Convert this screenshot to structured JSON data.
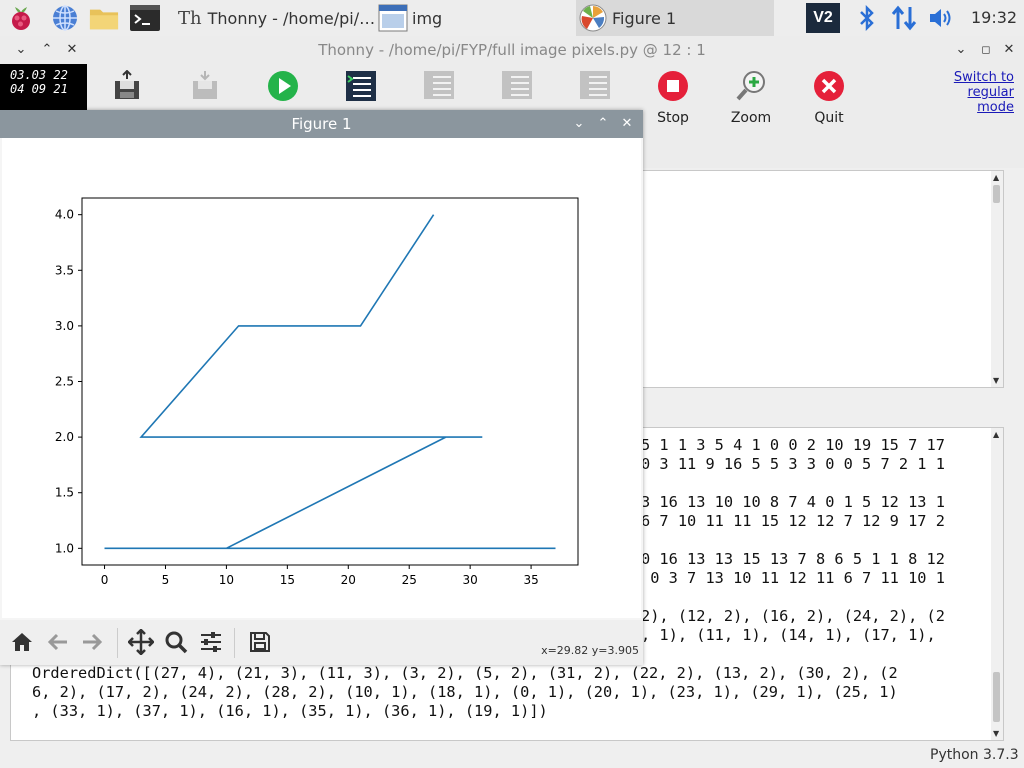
{
  "taskbar": {
    "icons": [
      "raspberry-menu-icon",
      "web-browser-icon",
      "file-manager-icon",
      "terminal-icon"
    ],
    "tasks": [
      {
        "label": "Thonny  -  /home/pi/…",
        "icon": "thonny-icon",
        "active": false
      },
      {
        "label": "img",
        "icon": "image-viewer-icon",
        "active": false
      },
      {
        "label": "Figure 1",
        "icon": "matplotlib-icon",
        "active": true
      }
    ],
    "tray": [
      "vnc-icon",
      "bluetooth-icon",
      "network-icon",
      "volume-icon"
    ],
    "clock": "19:32"
  },
  "thonny": {
    "title": "Thonny  -  /home/pi/FYP/full image  pixels.py  @  12 : 1",
    "controls": {
      "minimize": "⌄",
      "maximize": "⌃",
      "close": "✕"
    },
    "toolbar": [
      {
        "name": "new-button",
        "label": "",
        "icon": "save-icon",
        "disabled": false
      },
      {
        "name": "save-button",
        "label": "",
        "icon": "save-disabled-icon",
        "disabled": true
      },
      {
        "name": "run-button",
        "label": "",
        "icon": "run-icon",
        "disabled": false
      },
      {
        "name": "debug-button",
        "label": "",
        "icon": "debug-icon",
        "disabled": false
      },
      {
        "name": "step-over-button",
        "label": "",
        "icon": "step-over-icon",
        "disabled": true
      },
      {
        "name": "step-into-button",
        "label": "",
        "icon": "step-into-icon",
        "disabled": true
      },
      {
        "name": "step-out-button",
        "label": "",
        "icon": "step-out-icon",
        "disabled": true
      },
      {
        "name": "stop-button",
        "label": "Stop",
        "icon": "stop-icon",
        "disabled": false
      },
      {
        "name": "zoom-button",
        "label": "Zoom",
        "icon": "zoom-icon",
        "disabled": false
      },
      {
        "name": "quit-button",
        "label": "Quit",
        "icon": "quit-icon",
        "disabled": false
      }
    ],
    "switch_mode": "Switch to regular mode",
    "status_python": "Python 3.7.3"
  },
  "clock_widget": [
    "03.03 22",
    "04 09 21"
  ],
  "shell": {
    "partial_lines": [
      "5 1 1 3 5 4 1 0 0 2 10 19 15 7 17",
      "0 3 11 9 16 5 5 3 3 0 0 5 7 2 1 1",
      "",
      "3 16 13 10 10 8 7 4 0 1 5 12 13 1",
      "6 7 10 11 11 15 12 12 7 12 9 17 2",
      "",
      "0 16 13 13 15 13 7 8 6 5 1 1 8 12",
      " 0 3 7 13 10 11 12 11 6 7 11 10 1",
      "",
      "2), (12, 2), (16, 2), (24, 2), (2",
      ", 1), (11, 1), (14, 1), (17, 1),"
    ],
    "full_lines": [
      "OrderedDict([(27, 4), (21, 3), (11, 3), (3, 2), (5, 2), (31, 2), (22, 2), (13, 2), (30, 2), (2",
      "6, 2), (17, 2), (24, 2), (28, 2), (10, 1), (18, 1), (0, 1), (20, 1), (23, 1), (29, 1), (25, 1)",
      ", (33, 1), (37, 1), (16, 1), (35, 1), (36, 1), (19, 1)])"
    ]
  },
  "figure": {
    "title": "Figure 1",
    "controls": {
      "minimize": "⌄",
      "maximize": "⌃",
      "close": "✕"
    },
    "toolbar": [
      "home-icon",
      "back-icon",
      "forward-icon",
      "pan-icon",
      "zoom-rect-icon",
      "configure-subplots-icon",
      "save-figure-icon"
    ],
    "coords": "x=29.82 y=3.905"
  },
  "chart_data": {
    "type": "line",
    "title": "",
    "xlabel": "",
    "ylabel": "",
    "xlim": [
      -1.85,
      38.85
    ],
    "ylim": [
      0.85,
      4.15
    ],
    "xticks": [
      0,
      5,
      10,
      15,
      20,
      25,
      30,
      35
    ],
    "yticks": [
      1.0,
      1.5,
      2.0,
      2.5,
      3.0,
      3.5,
      4.0
    ],
    "xtick_labels": [
      "0",
      "5",
      "10",
      "15",
      "20",
      "25",
      "30",
      "35"
    ],
    "ytick_labels": [
      "1.0",
      "1.5",
      "2.0",
      "2.5",
      "3.0",
      "3.5",
      "4.0"
    ],
    "color": "#1f77b4",
    "grid": false,
    "series": [
      {
        "x": [
          27,
          21,
          11,
          3,
          5,
          31,
          22,
          13,
          30,
          26,
          17,
          24,
          28,
          10,
          18,
          0,
          20,
          23,
          29,
          25,
          33,
          37,
          16,
          35,
          36,
          19
        ],
        "y": [
          4,
          3,
          3,
          2,
          2,
          2,
          2,
          2,
          2,
          2,
          2,
          2,
          2,
          1,
          1,
          1,
          1,
          1,
          1,
          1,
          1,
          1,
          1,
          1,
          1,
          1
        ]
      }
    ]
  }
}
